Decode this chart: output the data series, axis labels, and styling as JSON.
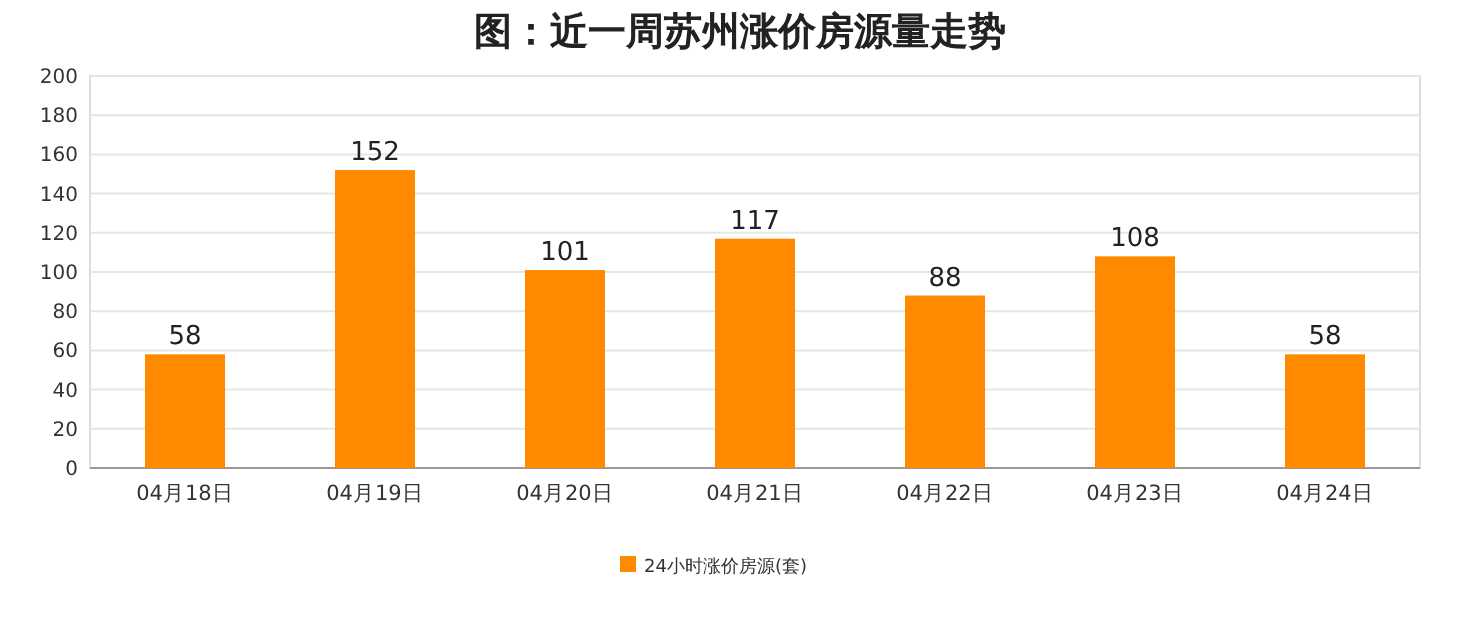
{
  "chart_data": {
    "type": "bar",
    "title": "图：近一周苏州涨价房源量走势",
    "categories": [
      "04月18日",
      "04月19日",
      "04月20日",
      "04月21日",
      "04月22日",
      "04月23日",
      "04月24日"
    ],
    "series": [
      {
        "name": "24小时涨价房源(套)",
        "color": "#ff8a00",
        "values": [
          58,
          152,
          101,
          117,
          88,
          108,
          58
        ]
      }
    ],
    "ylim": [
      0,
      200
    ],
    "yticks": [
      0,
      20,
      40,
      60,
      80,
      100,
      120,
      140,
      160,
      180,
      200
    ],
    "grid": "y",
    "legend": "bottom",
    "data_labels": true
  }
}
